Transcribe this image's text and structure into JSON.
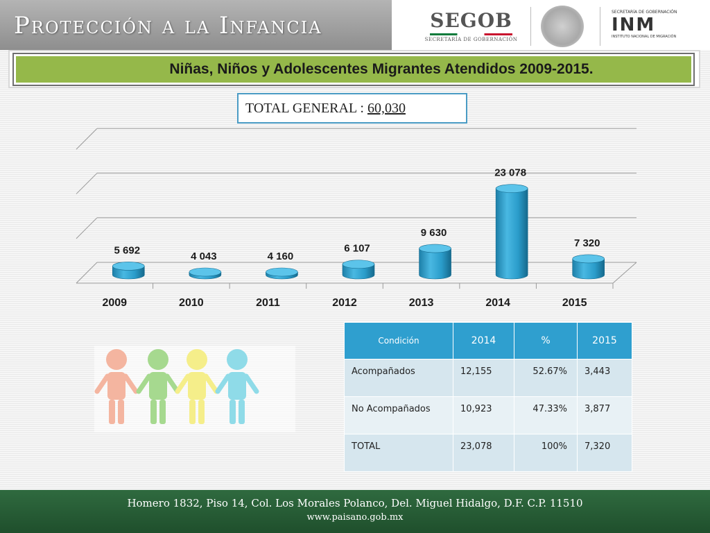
{
  "header": {
    "title": "Protección a la Infancia",
    "segob_name": "SEGOB",
    "segob_sub": "SECRETARÍA DE GOBERNACIÓN",
    "inm_top": "SECRETARÍA DE GOBERNACIÓN",
    "inm_logo": "INM",
    "inm_bottom": "INSTITUTO NACIONAL DE MIGRACIÓN"
  },
  "subtitle": "Niñas, Niños y Adolescentes Migrantes Atendidos 2009-2015.",
  "total": {
    "label": "TOTAL GENERAL : ",
    "value": "60,030"
  },
  "chart_data": {
    "type": "bar",
    "categories": [
      "2009",
      "2010",
      "2011",
      "2012",
      "2013",
      "2014",
      "2015"
    ],
    "values": [
      5692,
      4043,
      4160,
      6107,
      9630,
      23078,
      7320
    ],
    "data_labels": [
      "5 692",
      "4 043",
      "4 160",
      "6 107",
      "9 630",
      "23 078",
      "7 320"
    ],
    "title": "",
    "xlabel": "",
    "ylabel": "",
    "ylim": [
      0,
      35000
    ],
    "grid": true,
    "bar_color": "#2f9fcf",
    "style": "3d-cylinder"
  },
  "table": {
    "headers": [
      "Condición",
      "2014",
      "%",
      "2015"
    ],
    "rows": [
      [
        "Acompañados",
        "12,155",
        "52.67%",
        "3,443"
      ],
      [
        "No Acompañados",
        "10,923",
        "47.33%",
        "3,877"
      ],
      [
        "TOTAL",
        "23,078",
        "100%",
        "7,320"
      ]
    ]
  },
  "footer": {
    "address": "Homero 1832, Piso 14, Col. Los Morales Polanco, Del. Miguel Hidalgo, D.F. C.P. 11510",
    "website": "www.paisano.gob.mx"
  },
  "colors": {
    "banner_green": "#95b84a",
    "table_header_blue": "#2f9fcf",
    "footer_green": "#2f6a3f",
    "kid_colors": [
      "#f4b5a0",
      "#a6d98f",
      "#f5ee8a",
      "#8fdbe8"
    ]
  }
}
